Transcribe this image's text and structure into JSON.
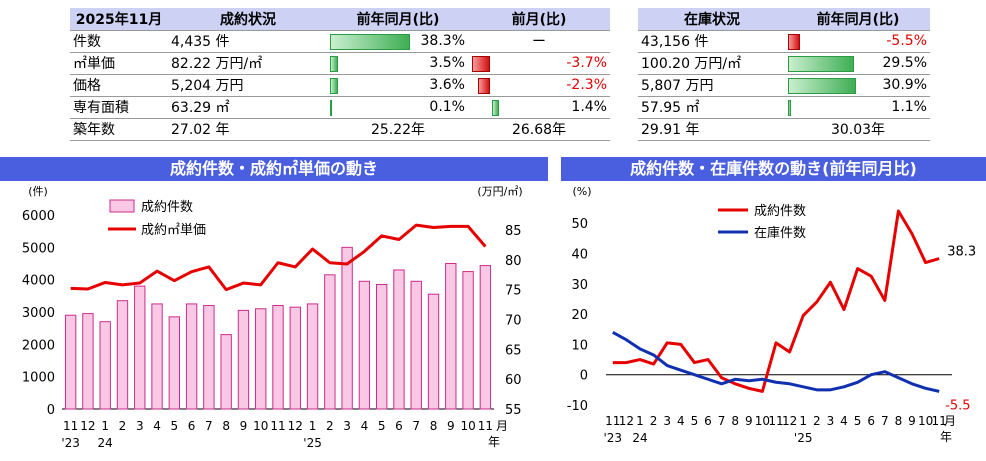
{
  "table_left": {
    "headers": [
      "2025年11月",
      "成約状況",
      "前年同月(比)",
      "前月(比)"
    ],
    "rows": [
      {
        "label": "件数",
        "value": "4,435 件",
        "yoy": "38.3%",
        "yoy_val": 38.3,
        "mom": "ー",
        "mom_val": null
      },
      {
        "label": "㎡単価",
        "value": "82.22 万円/㎡",
        "yoy": "3.5%",
        "yoy_val": 3.5,
        "mom": "-3.7%",
        "mom_val": -3.7
      },
      {
        "label": "価格",
        "value": "5,204 万円",
        "yoy": "3.6%",
        "yoy_val": 3.6,
        "mom": "-2.3%",
        "mom_val": -2.3
      },
      {
        "label": "専有面積",
        "value": "63.29 ㎡",
        "yoy": "0.1%",
        "yoy_val": 0.1,
        "mom": "1.4%",
        "mom_val": 1.4
      },
      {
        "label": "築年数",
        "value": "27.02 年",
        "yoy": "25.22年",
        "yoy_val": null,
        "mom": "26.68年",
        "mom_val": null
      }
    ]
  },
  "table_right": {
    "headers": [
      "在庫状況",
      "前年同月(比)"
    ],
    "rows": [
      {
        "value": "43,156 件",
        "yoy": "-5.5%",
        "yoy_val": -5.5
      },
      {
        "value": "100.20 万円/㎡",
        "yoy": "29.5%",
        "yoy_val": 29.5
      },
      {
        "value": "5,807 万円",
        "yoy": "30.9%",
        "yoy_val": 30.9
      },
      {
        "value": "57.95 ㎡",
        "yoy": "1.1%",
        "yoy_val": 1.1
      },
      {
        "value": "29.91 年",
        "yoy": "30.03年",
        "yoy_val": null
      }
    ]
  },
  "colors": {
    "header_bg": "#cdd2f5",
    "title_band": "#4a5ee0",
    "bar_fill": "#f9c8e4",
    "bar_edge": "#cc2c8c",
    "red": "#e60000",
    "blue": "#1030b0"
  },
  "chart_data": [
    {
      "type": "bar",
      "title": "成約件数・成約㎡単価の動き",
      "ylabel": "(件)",
      "y2label": "(万円/㎡)",
      "ylim": [
        0,
        6000
      ],
      "y2lim": [
        55,
        87.5
      ],
      "yticks": [
        0,
        1000,
        2000,
        3000,
        4000,
        5000,
        6000
      ],
      "y2ticks": [
        55,
        60,
        65,
        70,
        75,
        80,
        85
      ],
      "x_ticks": [
        "11",
        "12",
        "1",
        "2",
        "3",
        "4",
        "5",
        "6",
        "7",
        "8",
        "9",
        "10",
        "11",
        "12",
        "1",
        "2",
        "3",
        "4",
        "5",
        "6",
        "7",
        "8",
        "9",
        "10",
        "11"
      ],
      "year_labels": [
        {
          "text": "'23",
          "at": 0
        },
        {
          "text": "24",
          "at": 2
        },
        {
          "text": "'25",
          "at": 14
        }
      ],
      "x_suffix": "月",
      "x_suffix2": "年",
      "legend": "top-left",
      "series": [
        {
          "name": "成約件数",
          "kind": "bar",
          "values": [
            2900,
            2950,
            2700,
            3350,
            3800,
            3250,
            2850,
            3250,
            3200,
            2300,
            3050,
            3100,
            3200,
            3150,
            3250,
            4150,
            5000,
            3950,
            3850,
            4300,
            3950,
            3550,
            4500,
            4250,
            4435
          ]
        },
        {
          "name": "成約㎡単価",
          "kind": "line",
          "axis": "y2",
          "values": [
            75.2,
            75.1,
            76.2,
            75.8,
            76.1,
            78.1,
            76.5,
            78.0,
            78.8,
            75.0,
            76.1,
            75.8,
            79.5,
            78.8,
            81.8,
            79.5,
            79.3,
            81.4,
            84.0,
            83.4,
            85.8,
            85.4,
            85.6,
            85.6,
            82.22
          ]
        }
      ]
    },
    {
      "type": "line",
      "title": "成約件数・在庫件数の動き(前年同月比)",
      "ylabel": "(%)",
      "ylim": [
        -10,
        55
      ],
      "yticks": [
        -10,
        0,
        10,
        20,
        30,
        40,
        50
      ],
      "x_ticks": [
        "11",
        "12",
        "1",
        "2",
        "3",
        "4",
        "5",
        "6",
        "7",
        "8",
        "9",
        "10",
        "11",
        "12",
        "1",
        "2",
        "3",
        "4",
        "5",
        "6",
        "7",
        "8",
        "9",
        "10",
        "11"
      ],
      "year_labels": [
        {
          "text": "'23",
          "at": 0
        },
        {
          "text": "24",
          "at": 2
        },
        {
          "text": "'25",
          "at": 14
        }
      ],
      "x_suffix": "月",
      "x_suffix2": "年",
      "legend": "top-center",
      "end_labels": [
        "38.3",
        "-5.5"
      ],
      "series": [
        {
          "name": "成約件数",
          "values": [
            4,
            4,
            5,
            3.5,
            10.5,
            10,
            4,
            5,
            -1,
            -3,
            -4.5,
            -5.5,
            10.5,
            7.5,
            19.5,
            24,
            30.5,
            21.5,
            35,
            32.5,
            24.5,
            54,
            46.5,
            37,
            38.3
          ]
        },
        {
          "name": "在庫件数",
          "values": [
            14,
            11.5,
            8.5,
            6.5,
            3,
            1.5,
            0,
            -1.5,
            -3,
            -1.5,
            -2,
            -1.5,
            -2.5,
            -3,
            -4,
            -5,
            -5,
            -4,
            -2.5,
            0,
            1,
            -1,
            -3,
            -4.5,
            -5.5
          ]
        }
      ]
    }
  ]
}
